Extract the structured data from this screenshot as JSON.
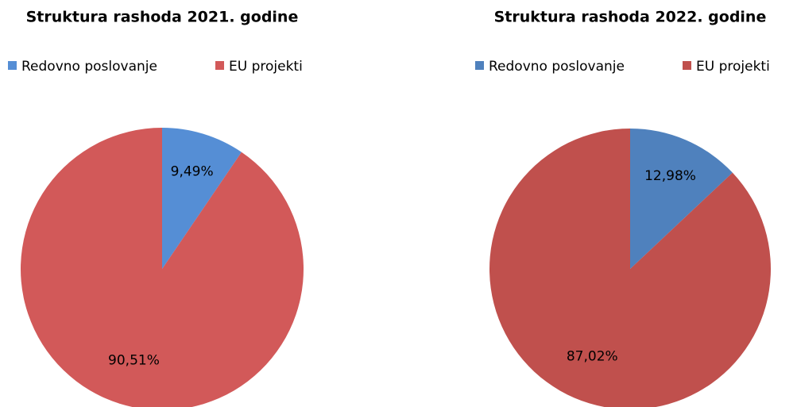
{
  "chart_data": [
    {
      "type": "pie",
      "title": "Struktura rashoda 2021. godine",
      "categories": [
        "Redovno poslovanje",
        "EU projekti"
      ],
      "values": [
        9.49,
        90.51
      ],
      "value_labels": [
        "9,49%",
        "90,51%"
      ],
      "colors": [
        "#558ed5",
        "#d25959"
      ]
    },
    {
      "type": "pie",
      "title": "Struktura rashoda 2022. godine",
      "categories": [
        "Redovno poslovanje",
        "EU projekti"
      ],
      "values": [
        12.98,
        87.02
      ],
      "value_labels": [
        "12,98%",
        "87,02%"
      ],
      "colors": [
        "#4f81bd",
        "#c0504d"
      ]
    }
  ]
}
